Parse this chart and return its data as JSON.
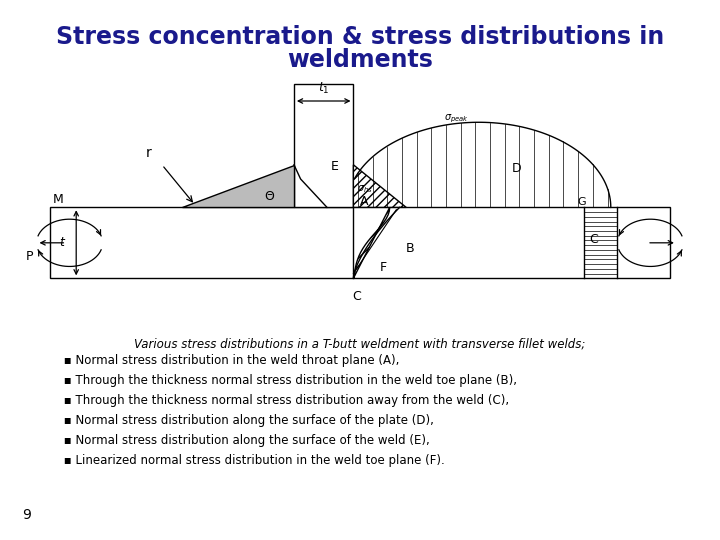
{
  "title_line1": "Stress concentration & stress distributions in",
  "title_line2": "weldments",
  "title_color": "#1a1a8c",
  "title_fontsize": 17,
  "caption": "Various stress distributions in a T-butt weldment with transverse fillet welds;",
  "bullets": [
    " ▪ Normal stress distribution in the weld throat plane (A),",
    " ▪ Through the thickness normal stress distribution in the weld toe plane (B),",
    " ▪ Through the thickness normal stress distribution away from the weld (C),",
    " ▪ Normal stress distribution along the surface of the plate (D),",
    " ▪ Normal stress distribution along the surface of the weld (E),",
    " ▪ Linearized normal stress distribution in the weld toe plane (F)."
  ],
  "bullet_fontsize": 8.5,
  "page_number": "9",
  "background_color": "#ffffff"
}
